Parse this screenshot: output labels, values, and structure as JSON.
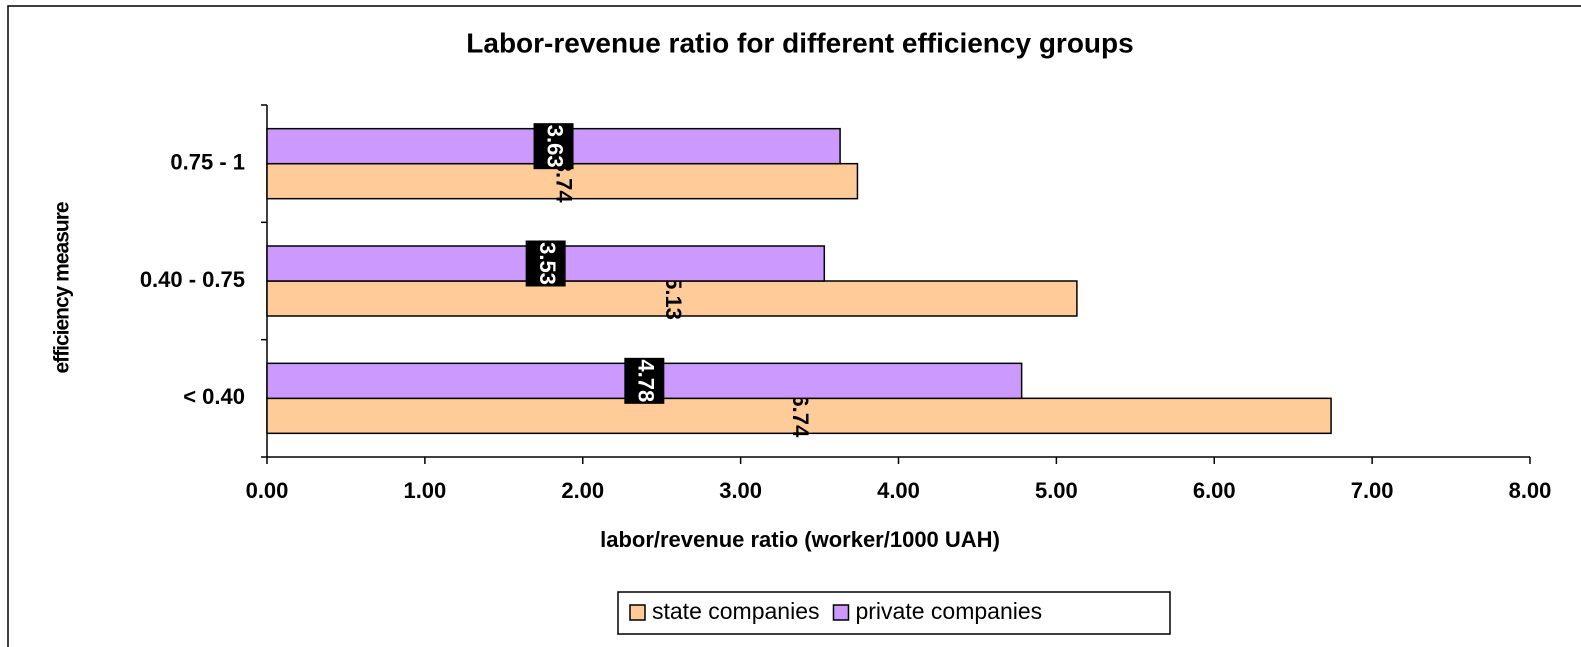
{
  "chart_data": {
    "type": "bar",
    "orientation": "horizontal",
    "title": "Labor-revenue ratio for different efficiency groups",
    "x_label": "labor/revenue ratio (worker/1000 UAH)",
    "y_label": "efficiency measure",
    "categories": [
      "< 0.40",
      "0.40 - 0.75",
      "0.75 - 1"
    ],
    "series": [
      {
        "name": "state companies",
        "color": "#ffcc99",
        "values": [
          6.74,
          5.13,
          3.74
        ]
      },
      {
        "name": "private companies",
        "color": "#cc99ff",
        "values": [
          4.78,
          3.53,
          3.63
        ]
      }
    ],
    "xlim": [
      0,
      8
    ],
    "xticks": [
      {
        "value": 0,
        "label": "0.00"
      },
      {
        "value": 1,
        "label": "1.00"
      },
      {
        "value": 2,
        "label": "2.00"
      },
      {
        "value": 3,
        "label": "3.00"
      },
      {
        "value": 4,
        "label": "4.00"
      },
      {
        "value": 5,
        "label": "5.00"
      },
      {
        "value": 6,
        "label": "6.00"
      },
      {
        "value": 7,
        "label": "7.00"
      },
      {
        "value": 8,
        "label": "8.00"
      }
    ],
    "legend": "bottom"
  }
}
